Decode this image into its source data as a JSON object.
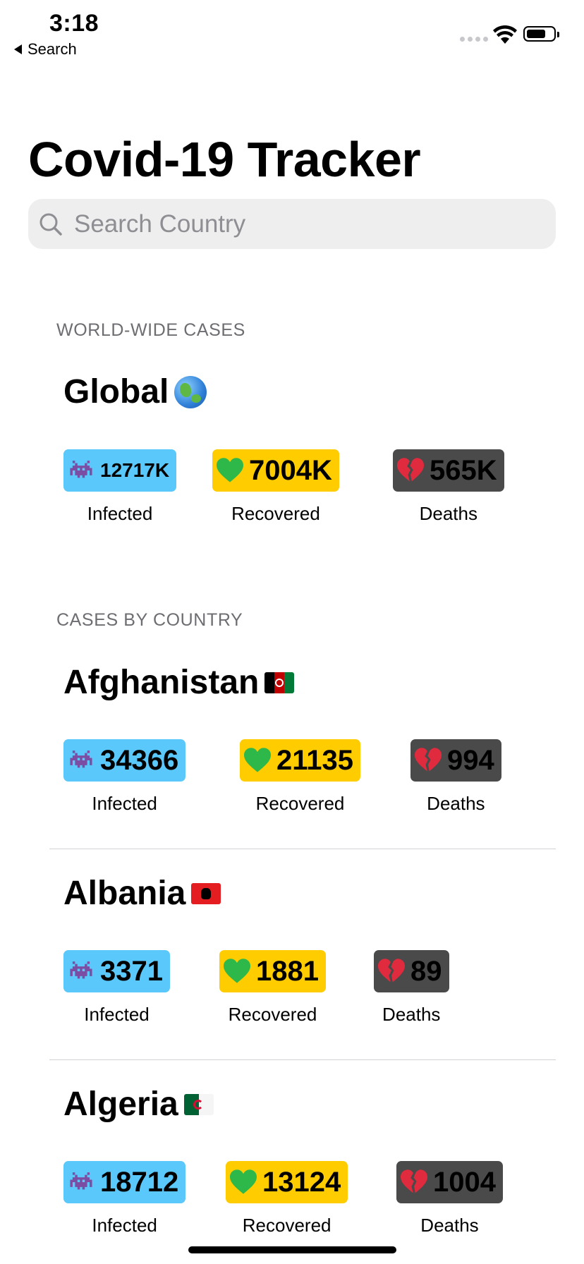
{
  "status_bar": {
    "time": "3:18",
    "back_label": "Search"
  },
  "nav": {
    "title": "Covid-19 Tracker"
  },
  "search": {
    "placeholder": "Search Country"
  },
  "worldwide": {
    "section_header": "WORLD-WIDE CASES",
    "name": "Global",
    "icon": "globe-icon",
    "infected": "12717K",
    "recovered": "7004K",
    "deaths": "565K"
  },
  "labels": {
    "infected": "Infected",
    "recovered": "Recovered",
    "deaths": "Deaths"
  },
  "colors": {
    "infected": "#5ac8fa",
    "recovered": "#ffcc00",
    "deaths": "#4a4a4a"
  },
  "countries_section_header": "CASES BY COUNTRY",
  "countries": [
    {
      "name": "Afghanistan",
      "flag": "afghanistan-flag-icon",
      "infected": "34366",
      "recovered": "21135",
      "deaths": "994"
    },
    {
      "name": "Albania",
      "flag": "albania-flag-icon",
      "infected": "3371",
      "recovered": "1881",
      "deaths": "89"
    },
    {
      "name": "Algeria",
      "flag": "algeria-flag-icon",
      "infected": "18712",
      "recovered": "13124",
      "deaths": "1004"
    }
  ]
}
